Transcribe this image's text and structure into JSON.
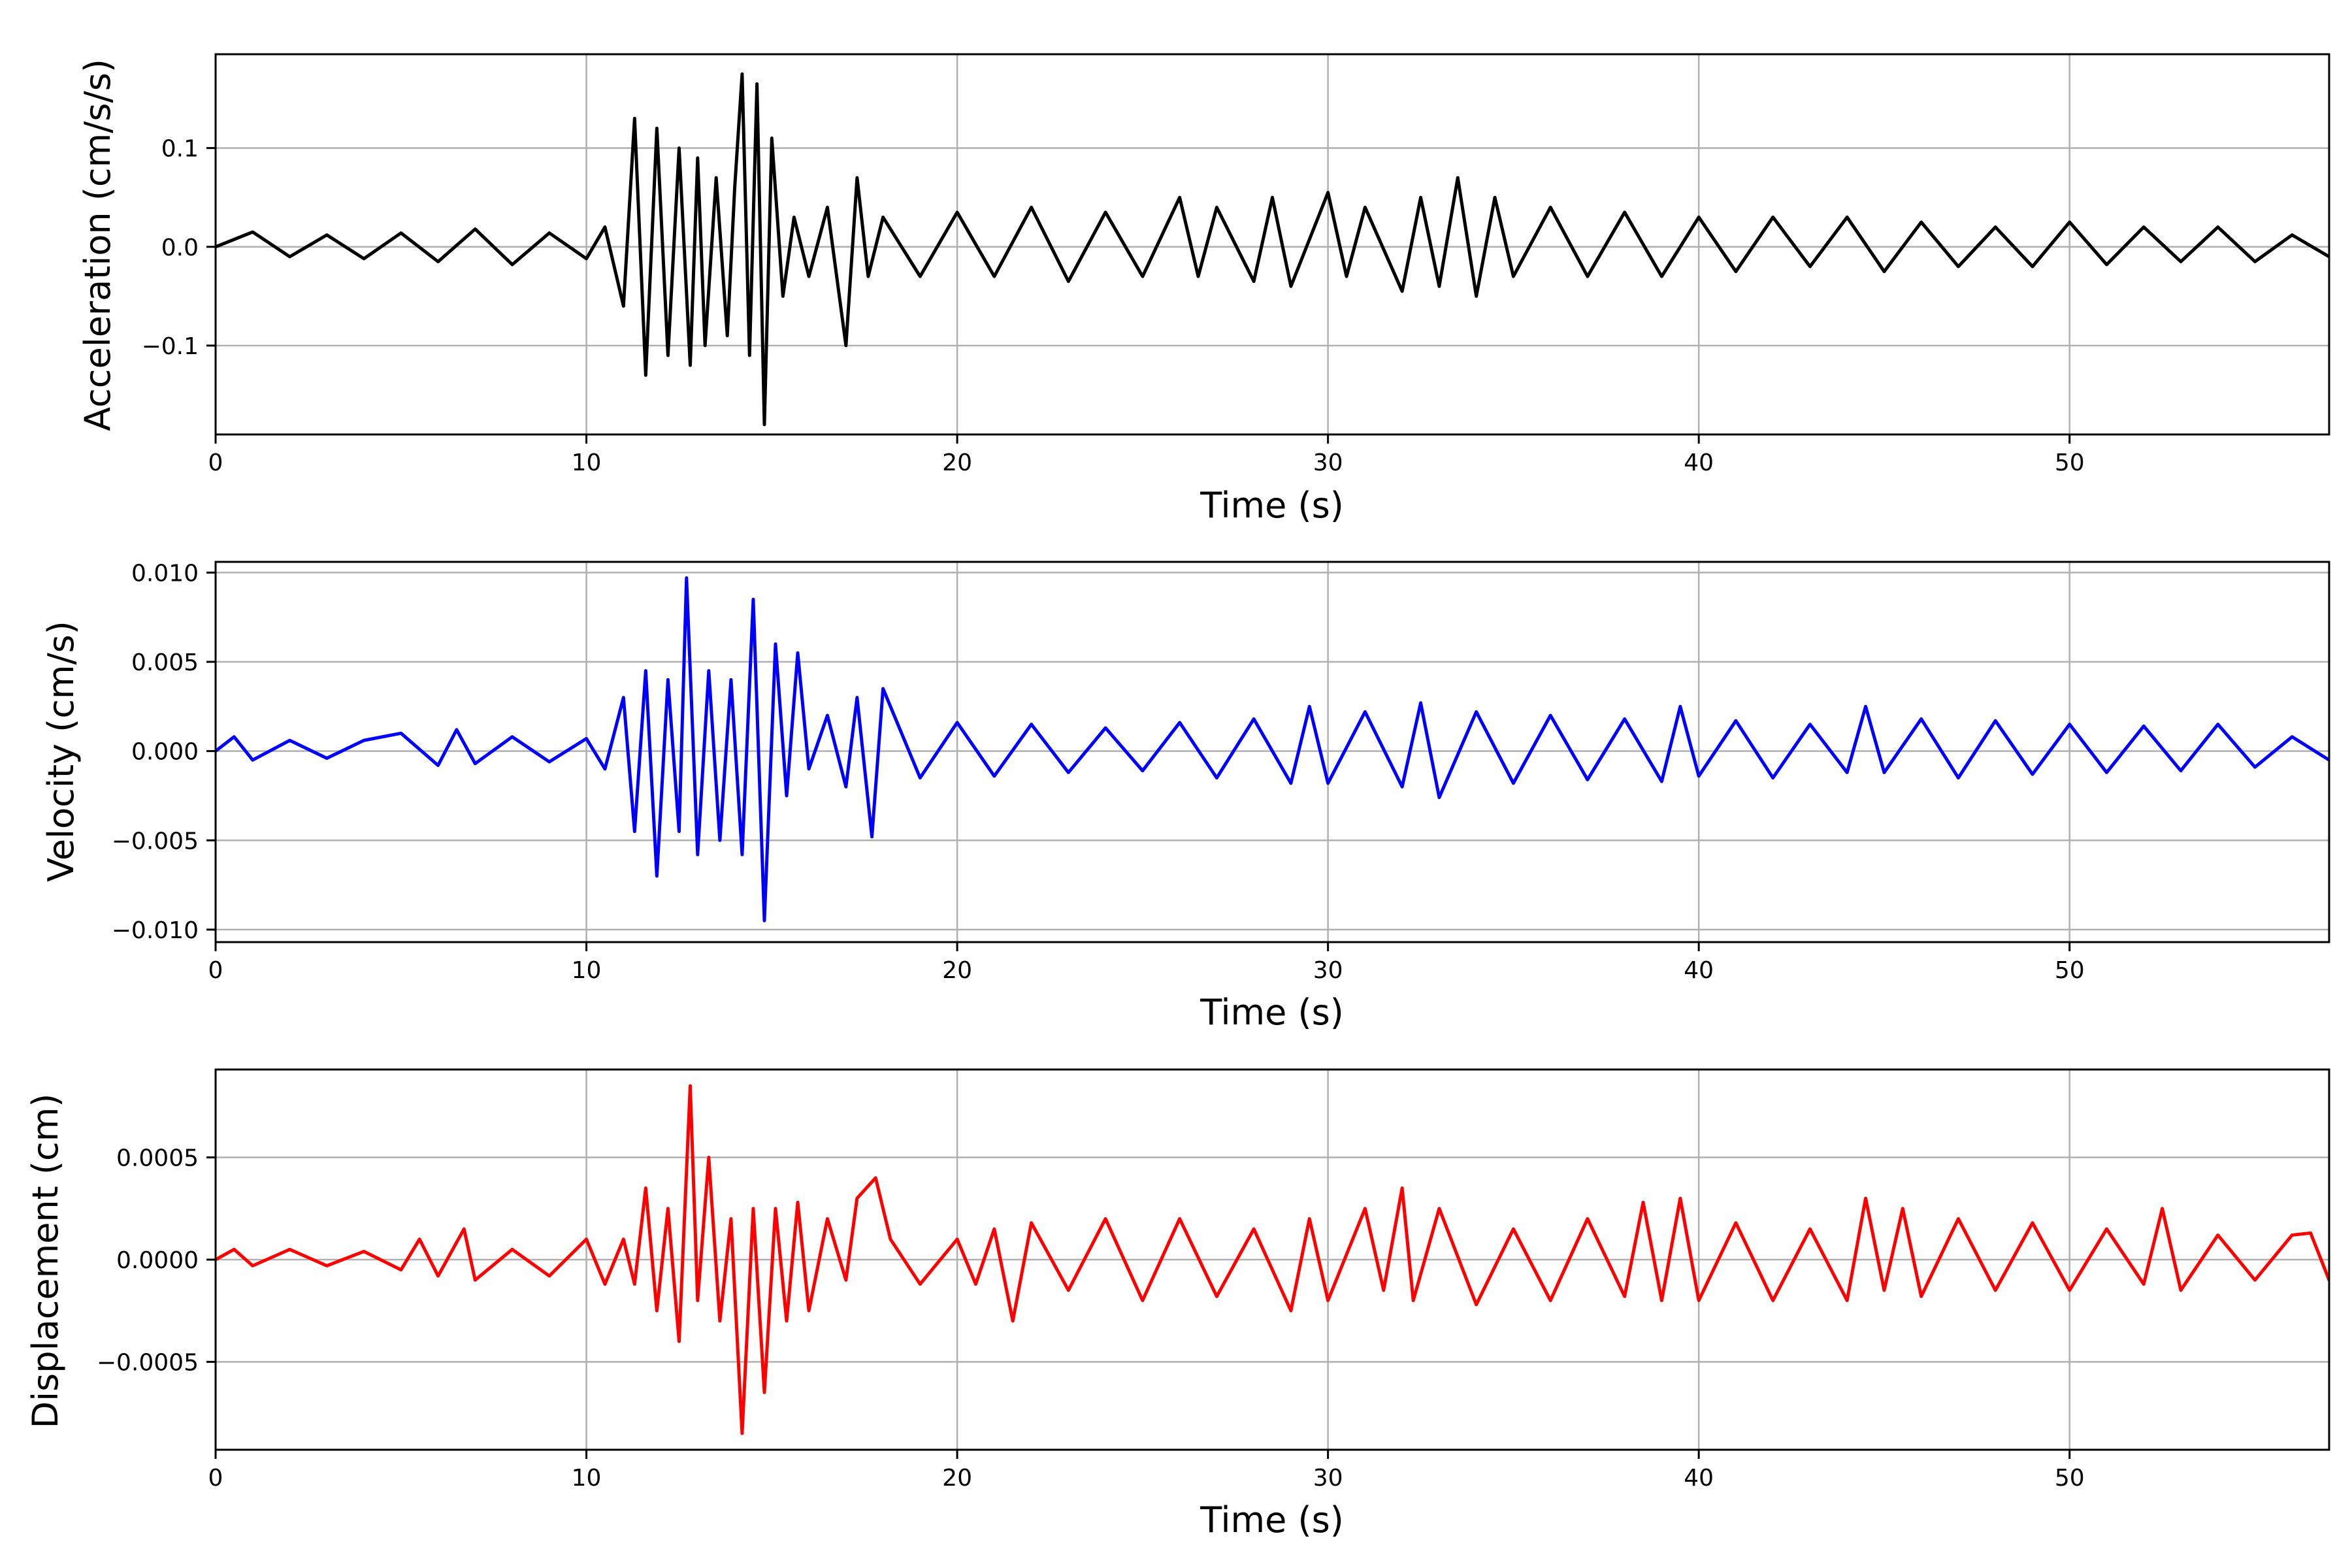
{
  "chart_data": [
    {
      "type": "line",
      "xlabel": "Time (s)",
      "ylabel": "Acceleration (cm/s/s)",
      "xlim": [
        0,
        57
      ],
      "ylim": [
        -0.19,
        0.195
      ],
      "xticks": [
        0,
        10,
        20,
        30,
        40,
        50
      ],
      "xtick_labels": [
        "0",
        "10",
        "20",
        "30",
        "40",
        "50"
      ],
      "yticks": [
        -0.1,
        0.0,
        0.1
      ],
      "ytick_labels": [
        "−0.1",
        "0.0",
        "0.1"
      ],
      "grid": true,
      "color": "#000000",
      "series": [
        {
          "x": [
            0,
            1,
            2,
            3,
            4,
            5,
            6,
            7,
            8,
            9,
            10,
            10.5,
            11.0,
            11.3,
            11.6,
            11.9,
            12.2,
            12.5,
            12.8,
            13.0,
            13.2,
            13.5,
            13.8,
            14.0,
            14.2,
            14.4,
            14.6,
            14.8,
            15.0,
            15.3,
            15.6,
            16.0,
            16.5,
            17.0,
            17.3,
            17.6,
            18.0,
            19.0,
            20.0,
            21.0,
            22.0,
            23.0,
            24.0,
            25.0,
            26.0,
            26.5,
            27.0,
            28.0,
            28.5,
            29.0,
            30.0,
            30.5,
            31.0,
            32.0,
            32.5,
            33.0,
            33.5,
            34.0,
            34.5,
            35.0,
            36.0,
            37.0,
            38.0,
            39.0,
            40.0,
            41.0,
            42.0,
            43.0,
            44.0,
            45.0,
            46.0,
            47.0,
            48.0,
            49.0,
            50.0,
            51.0,
            52.0,
            53.0,
            54.0,
            55.0,
            56.0,
            57.0
          ],
          "y": [
            0.0,
            0.015,
            -0.01,
            0.012,
            -0.012,
            0.014,
            -0.015,
            0.018,
            -0.018,
            0.014,
            -0.012,
            0.02,
            -0.06,
            0.13,
            -0.13,
            0.12,
            -0.11,
            0.1,
            -0.12,
            0.09,
            -0.1,
            0.07,
            -0.09,
            0.06,
            0.175,
            -0.11,
            0.165,
            -0.18,
            0.11,
            -0.05,
            0.03,
            -0.03,
            0.04,
            -0.1,
            0.07,
            -0.03,
            0.03,
            -0.03,
            0.035,
            -0.03,
            0.04,
            -0.035,
            0.035,
            -0.03,
            0.05,
            -0.03,
            0.04,
            -0.035,
            0.05,
            -0.04,
            0.055,
            -0.03,
            0.04,
            -0.045,
            0.05,
            -0.04,
            0.07,
            -0.05,
            0.05,
            -0.03,
            0.04,
            -0.03,
            0.035,
            -0.03,
            0.03,
            -0.025,
            0.03,
            -0.02,
            0.03,
            -0.025,
            0.025,
            -0.02,
            0.02,
            -0.02,
            0.025,
            -0.018,
            0.02,
            -0.015,
            0.02,
            -0.015,
            0.012,
            -0.01
          ]
        }
      ]
    },
    {
      "type": "line",
      "xlabel": "Time (s)",
      "ylabel": "Velocity (cm/s)",
      "xlim": [
        0,
        57
      ],
      "ylim": [
        -0.0107,
        0.0106
      ],
      "xticks": [
        0,
        10,
        20,
        30,
        40,
        50
      ],
      "xtick_labels": [
        "0",
        "10",
        "20",
        "30",
        "40",
        "50"
      ],
      "yticks": [
        -0.01,
        -0.005,
        0.0,
        0.005,
        0.01
      ],
      "ytick_labels": [
        "−0.010",
        "−0.005",
        "0.000",
        "0.005",
        "0.010"
      ],
      "grid": true,
      "color": "#0000ff",
      "series": [
        {
          "x": [
            0,
            0.5,
            1,
            2,
            3,
            4,
            5,
            6,
            6.5,
            7,
            8,
            9,
            10,
            10.5,
            11.0,
            11.3,
            11.6,
            11.9,
            12.2,
            12.5,
            12.7,
            13.0,
            13.3,
            13.6,
            13.9,
            14.2,
            14.5,
            14.8,
            15.1,
            15.4,
            15.7,
            16.0,
            16.5,
            17.0,
            17.3,
            17.7,
            18.0,
            19.0,
            20.0,
            21.0,
            22.0,
            23.0,
            24.0,
            25.0,
            26.0,
            27.0,
            28.0,
            29.0,
            29.5,
            30.0,
            31.0,
            32.0,
            32.5,
            33.0,
            34.0,
            35.0,
            36.0,
            37.0,
            38.0,
            39.0,
            39.5,
            40.0,
            41.0,
            42.0,
            43.0,
            44.0,
            44.5,
            45.0,
            46.0,
            47.0,
            48.0,
            49.0,
            50.0,
            51.0,
            52.0,
            53.0,
            54.0,
            55.0,
            56.0,
            57.0
          ],
          "y": [
            0.0,
            0.0008,
            -0.0005,
            0.0006,
            -0.0004,
            0.0006,
            0.001,
            -0.0008,
            0.0012,
            -0.0007,
            0.0008,
            -0.0006,
            0.0007,
            -0.001,
            0.003,
            -0.0045,
            0.0045,
            -0.007,
            0.004,
            -0.0045,
            0.0097,
            -0.0058,
            0.0045,
            -0.005,
            0.004,
            -0.0058,
            0.0085,
            -0.0095,
            0.006,
            -0.0025,
            0.0055,
            -0.001,
            0.002,
            -0.002,
            0.003,
            -0.0048,
            0.0035,
            -0.0015,
            0.0016,
            -0.0014,
            0.0015,
            -0.0012,
            0.0013,
            -0.0011,
            0.0016,
            -0.0015,
            0.0018,
            -0.0018,
            0.0025,
            -0.0018,
            0.0022,
            -0.002,
            0.0027,
            -0.0026,
            0.0022,
            -0.0018,
            0.002,
            -0.0016,
            0.0018,
            -0.0017,
            0.0025,
            -0.0014,
            0.0017,
            -0.0015,
            0.0015,
            -0.0012,
            0.0025,
            -0.0012,
            0.0018,
            -0.0015,
            0.0017,
            -0.0013,
            0.0015,
            -0.0012,
            0.0014,
            -0.0011,
            0.0015,
            -0.0009,
            0.0008,
            -0.0005
          ]
        }
      ]
    },
    {
      "type": "line",
      "xlabel": "Time (s)",
      "ylabel": "Displacement (cm)",
      "xlim": [
        0,
        57
      ],
      "ylim": [
        -0.00093,
        0.00093
      ],
      "xticks": [
        0,
        10,
        20,
        30,
        40,
        50
      ],
      "xtick_labels": [
        "0",
        "10",
        "20",
        "30",
        "40",
        "50"
      ],
      "yticks": [
        -0.0005,
        0.0,
        0.0005
      ],
      "ytick_labels": [
        "−0.0005",
        "0.0000",
        "0.0005"
      ],
      "grid": true,
      "color": "#ff0000",
      "series": [
        {
          "x": [
            0,
            0.5,
            1,
            2,
            3,
            4,
            5,
            5.5,
            6,
            6.7,
            7,
            8,
            9,
            10,
            10.5,
            11.0,
            11.3,
            11.6,
            11.9,
            12.2,
            12.5,
            12.8,
            13.0,
            13.3,
            13.6,
            13.9,
            14.2,
            14.5,
            14.8,
            15.1,
            15.4,
            15.7,
            16.0,
            16.5,
            17.0,
            17.3,
            17.8,
            18.2,
            19.0,
            20.0,
            20.5,
            21.0,
            21.5,
            22.0,
            23.0,
            24.0,
            25.0,
            26.0,
            27.0,
            28.0,
            29.0,
            29.5,
            30.0,
            31.0,
            31.5,
            32.0,
            32.3,
            33.0,
            34.0,
            35.0,
            36.0,
            37.0,
            38.0,
            38.5,
            39.0,
            39.5,
            40.0,
            41.0,
            42.0,
            43.0,
            44.0,
            44.5,
            45.0,
            45.5,
            46.0,
            47.0,
            48.0,
            49.0,
            50.0,
            51.0,
            52.0,
            52.5,
            53.0,
            54.0,
            55.0,
            56.0,
            56.5,
            57.0
          ],
          "y": [
            0.0,
            5e-05,
            -3e-05,
            5e-05,
            -3e-05,
            4e-05,
            -5e-05,
            0.0001,
            -8e-05,
            0.00015,
            -0.0001,
            5e-05,
            -8e-05,
            0.0001,
            -0.00012,
            0.0001,
            -0.00012,
            0.00035,
            -0.00025,
            0.00025,
            -0.0004,
            0.00085,
            -0.0002,
            0.0005,
            -0.0003,
            0.0002,
            -0.00085,
            0.00025,
            -0.00065,
            0.00025,
            -0.0003,
            0.00028,
            -0.00025,
            0.0002,
            -0.0001,
            0.0003,
            0.0004,
            0.0001,
            -0.00012,
            0.0001,
            -0.00012,
            0.00015,
            -0.0003,
            0.00018,
            -0.00015,
            0.0002,
            -0.0002,
            0.0002,
            -0.00018,
            0.00015,
            -0.00025,
            0.0002,
            -0.0002,
            0.00025,
            -0.00015,
            0.00035,
            -0.0002,
            0.00025,
            -0.00022,
            0.00015,
            -0.0002,
            0.0002,
            -0.00018,
            0.00028,
            -0.0002,
            0.0003,
            -0.0002,
            0.00018,
            -0.0002,
            0.00015,
            -0.0002,
            0.0003,
            -0.00015,
            0.00025,
            -0.00018,
            0.0002,
            -0.00015,
            0.00018,
            -0.00015,
            0.00015,
            -0.00012,
            0.00025,
            -0.00015,
            0.00012,
            -0.0001,
            0.00012,
            0.00013,
            -0.0001
          ]
        }
      ]
    }
  ]
}
